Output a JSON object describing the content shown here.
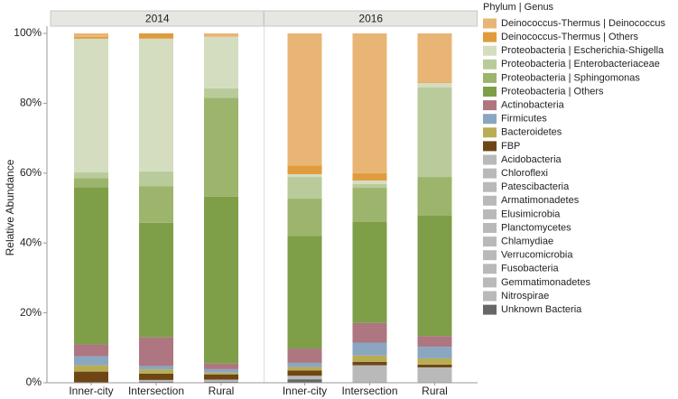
{
  "chart_data": {
    "type": "stacked-bar",
    "ylabel": "Relative Abundance",
    "ylim": [
      0,
      100
    ],
    "yticks": [
      {
        "value": 0,
        "label": "0%"
      },
      {
        "value": 20,
        "label": "20%"
      },
      {
        "value": 40,
        "label": "40%"
      },
      {
        "value": 60,
        "label": "60%"
      },
      {
        "value": 80,
        "label": "80%"
      },
      {
        "value": 100,
        "label": "100%"
      }
    ],
    "legend": {
      "title": "Phylum  |  Genus",
      "entries": [
        {
          "name": "Deinococcus-Thermus | Deinococcus",
          "color": "#e8b574"
        },
        {
          "name": "Deinococcus-Thermus | Others",
          "color": "#e09b3c"
        },
        {
          "name": "Proteobacteria | Escherichia-Shigella",
          "color": "#d4ddc0"
        },
        {
          "name": "Proteobacteria | Enterobacteriaceae",
          "color": "#bacb9b"
        },
        {
          "name": "Proteobacteria | Sphingomonas",
          "color": "#9db46c"
        },
        {
          "name": "Proteobacteria | Others",
          "color": "#7f9e48"
        },
        {
          "name": "Actinobacteria",
          "color": "#ad7680"
        },
        {
          "name": "Firmicutes",
          "color": "#8aa6c1"
        },
        {
          "name": "Bacteroidetes",
          "color": "#b8ad53"
        },
        {
          "name": "FBP",
          "color": "#6e4615"
        },
        {
          "name": "Acidobacteria",
          "color": "#b9b9b9"
        },
        {
          "name": "Chloroflexi",
          "color": "#b9b9b9"
        },
        {
          "name": "Patescibacteria",
          "color": "#b9b9b9"
        },
        {
          "name": "Armatimonadetes",
          "color": "#b9b9b9"
        },
        {
          "name": "Elusimicrobia",
          "color": "#b9b9b9"
        },
        {
          "name": "Planctomycetes",
          "color": "#b9b9b9"
        },
        {
          "name": "Chlamydiae",
          "color": "#b9b9b9"
        },
        {
          "name": "Verrucomicrobia",
          "color": "#b9b9b9"
        },
        {
          "name": "Fusobacteria",
          "color": "#b9b9b9"
        },
        {
          "name": "Gemmatimonadetes",
          "color": "#b9b9b9"
        },
        {
          "name": "Nitrospirae",
          "color": "#b9b9b9"
        },
        {
          "name": "Unknown Bacteria",
          "color": "#676767"
        }
      ]
    },
    "facets": [
      {
        "title": "2014",
        "categories": [
          "Inner-city",
          "Intersection",
          "Rural"
        ],
        "series": [
          {
            "values": [
              1.0,
              0,
              1.0
            ]
          },
          {
            "values": [
              0.5,
              1.5,
              0
            ]
          },
          {
            "values": [
              38.3,
              38.0,
              14.7
            ]
          },
          {
            "values": [
              1.6,
              4.2,
              2.7
            ]
          },
          {
            "values": [
              2.6,
              10.5,
              28.3
            ]
          },
          {
            "values": [
              45.0,
              32.8,
              47.8
            ]
          },
          {
            "values": [
              3.4,
              8.2,
              1.6
            ]
          },
          {
            "values": [
              2.6,
              1.0,
              1.0
            ]
          },
          {
            "values": [
              1.8,
              1.2,
              0.5
            ]
          },
          {
            "values": [
              3.2,
              1.8,
              1.5
            ]
          },
          {
            "values": [
              0,
              0.5,
              0.6
            ]
          },
          {
            "values": [
              0,
              0,
              0
            ]
          },
          {
            "values": [
              0,
              0,
              0
            ]
          },
          {
            "values": [
              0,
              0,
              0
            ]
          },
          {
            "values": [
              0,
              0,
              0
            ]
          },
          {
            "values": [
              0,
              0,
              0
            ]
          },
          {
            "values": [
              0,
              0,
              0
            ]
          },
          {
            "values": [
              0,
              0,
              0
            ]
          },
          {
            "values": [
              0,
              0,
              0
            ]
          },
          {
            "values": [
              0,
              0,
              0
            ]
          },
          {
            "values": [
              0,
              0,
              0
            ]
          },
          {
            "values": [
              0,
              0.3,
              0.3
            ]
          }
        ]
      },
      {
        "title": "2016",
        "categories": [
          "Inner-city",
          "Intersection",
          "Rural"
        ],
        "series": [
          {
            "values": [
              37.8,
              40.0,
              14.0
            ]
          },
          {
            "values": [
              2.5,
              2.1,
              0.2
            ]
          },
          {
            "values": [
              0.8,
              1.0,
              1.3
            ]
          },
          {
            "values": [
              6.2,
              1.1,
              25.6
            ]
          },
          {
            "values": [
              10.7,
              9.8,
              11.1
            ]
          },
          {
            "values": [
              32.2,
              28.9,
              34.4
            ]
          },
          {
            "values": [
              4.1,
              5.6,
              3.1
            ]
          },
          {
            "values": [
              1.2,
              3.7,
              3.3
            ]
          },
          {
            "values": [
              1.0,
              1.8,
              1.8
            ]
          },
          {
            "values": [
              1.5,
              1.0,
              0.8
            ]
          },
          {
            "values": [
              1.0,
              5.0,
              4.4
            ]
          },
          {
            "values": [
              0,
              0,
              0
            ]
          },
          {
            "values": [
              0,
              0,
              0
            ]
          },
          {
            "values": [
              0,
              0,
              0
            ]
          },
          {
            "values": [
              0,
              0,
              0
            ]
          },
          {
            "values": [
              0,
              0,
              0
            ]
          },
          {
            "values": [
              0,
              0,
              0
            ]
          },
          {
            "values": [
              0,
              0,
              0
            ]
          },
          {
            "values": [
              0,
              0,
              0
            ]
          },
          {
            "values": [
              0,
              0,
              0
            ]
          },
          {
            "values": [
              0,
              0,
              0
            ]
          },
          {
            "values": [
              1.0,
              0,
              0
            ]
          }
        ]
      }
    ]
  }
}
